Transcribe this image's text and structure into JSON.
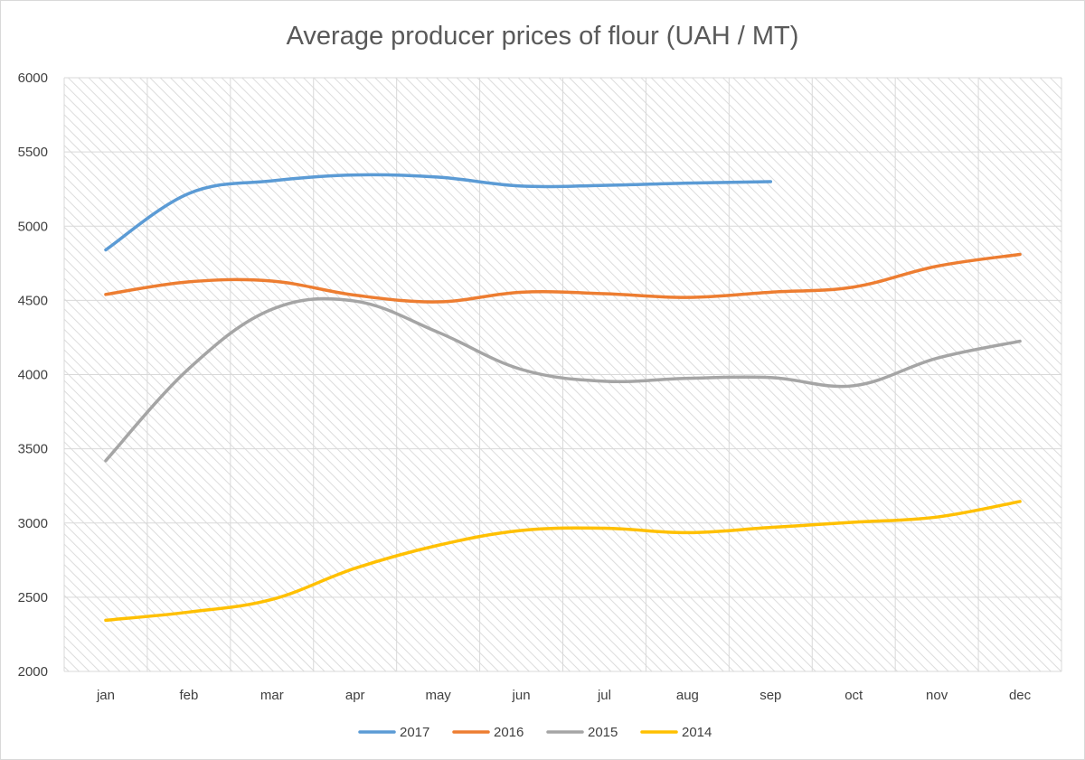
{
  "chart_data": {
    "type": "line",
    "title": "Average producer prices of flour (UAH / MT)",
    "xlabel": "",
    "ylabel": "",
    "categories": [
      "jan",
      "feb",
      "mar",
      "apr",
      "may",
      "jun",
      "jul",
      "aug",
      "sep",
      "oct",
      "nov",
      "dec"
    ],
    "ylim": [
      2000,
      6000
    ],
    "yticks": [
      2000,
      2500,
      3000,
      3500,
      4000,
      4500,
      5000,
      5500,
      6000
    ],
    "grid": true,
    "legend_position": "bottom",
    "series": [
      {
        "name": "2017",
        "color": "#5b9bd5",
        "values": [
          4840,
          5220,
          5305,
          5345,
          5330,
          5270,
          5275,
          5290,
          5300,
          null,
          null,
          null
        ]
      },
      {
        "name": "2016",
        "color": "#ed7d31",
        "values": [
          4540,
          4625,
          4630,
          4535,
          4490,
          4555,
          4545,
          4520,
          4555,
          4590,
          4730,
          4810
        ]
      },
      {
        "name": "2015",
        "color": "#a5a5a5",
        "values": [
          3420,
          4040,
          4440,
          4495,
          4285,
          4035,
          3955,
          3975,
          3980,
          3925,
          4110,
          4225
        ]
      },
      {
        "name": "2014",
        "color": "#ffc000",
        "values": [
          2345,
          2400,
          2485,
          2695,
          2850,
          2950,
          2965,
          2935,
          2970,
          3005,
          3040,
          3145
        ]
      }
    ]
  }
}
